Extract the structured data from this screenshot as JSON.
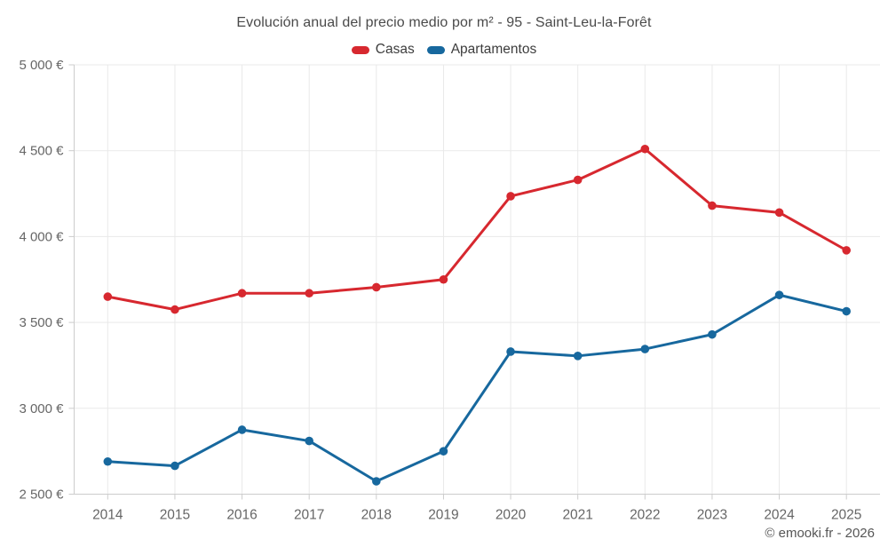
{
  "chart_data": {
    "type": "line",
    "title": "Evolución anual del precio medio por m² - 95 - Saint-Leu-la-Forêt",
    "categories": [
      "2014",
      "2015",
      "2016",
      "2017",
      "2018",
      "2019",
      "2020",
      "2021",
      "2022",
      "2023",
      "2024",
      "2025"
    ],
    "series": [
      {
        "name": "Casas",
        "color": "#d7282f",
        "values": [
          3650,
          3575,
          3670,
          3670,
          3705,
          3750,
          4235,
          4330,
          4510,
          4180,
          4140,
          3920
        ]
      },
      {
        "name": "Apartamentos",
        "color": "#17689e",
        "values": [
          2690,
          2665,
          2875,
          2810,
          2575,
          2750,
          3330,
          3305,
          3345,
          3430,
          3660,
          3565
        ]
      }
    ],
    "ylim": [
      2500,
      5000
    ],
    "y_ticks": [
      2500,
      3000,
      3500,
      4000,
      4500,
      5000
    ],
    "y_tick_suffix": " €",
    "xlabel": "",
    "ylabel": "",
    "grid": true,
    "legend_position": "top",
    "attribution": "© emooki.fr - 2026"
  },
  "colors": {
    "grid_line": "#e9e9e9",
    "axis_line": "#cccccc",
    "tick_label": "#666666",
    "title_text": "#4a4a4a",
    "legend_text": "#3d3d3d",
    "attribution_text": "#565656",
    "background": "#ffffff"
  }
}
